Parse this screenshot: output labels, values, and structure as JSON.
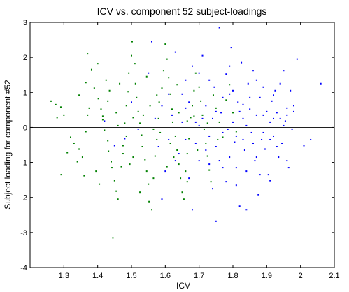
{
  "chart_data": {
    "type": "scatter",
    "title": "ICV vs. component 52 subject-loadings",
    "xlabel": "ICV",
    "ylabel": "Subject loading for component #52",
    "xlim": [
      1.2,
      2.1
    ],
    "ylim": [
      -4,
      3
    ],
    "xticks": [
      "1.3",
      "1.4",
      "1.5",
      "1.6",
      "1.7",
      "1.8",
      "1.9",
      "2",
      "2.1"
    ],
    "yticks": [
      "3",
      "2",
      "1",
      "0",
      "-1",
      "-2",
      "-3",
      "-4"
    ],
    "reference_line_y": 0,
    "box": true,
    "grid": false,
    "series": [
      {
        "color": "#008000",
        "points": [
          [
            1.262,
            0.75
          ],
          [
            1.276,
            0.65
          ],
          [
            1.291,
            0.58
          ],
          [
            1.3,
            0.35
          ],
          [
            1.28,
            0.28
          ],
          [
            1.32,
            -0.28
          ],
          [
            1.33,
            -0.45
          ],
          [
            1.345,
            -0.62
          ],
          [
            1.31,
            -0.72
          ],
          [
            1.34,
            -0.98
          ],
          [
            1.292,
            -1.35
          ],
          [
            1.36,
            -1.38
          ],
          [
            1.365,
            -0.12
          ],
          [
            1.37,
            0.35
          ],
          [
            1.375,
            0.55
          ],
          [
            1.365,
            1.28
          ],
          [
            1.37,
            2.1
          ],
          [
            1.382,
            1.65
          ],
          [
            1.39,
            1.12
          ],
          [
            1.4,
            1.82
          ],
          [
            1.402,
            0.82
          ],
          [
            1.41,
            0.52
          ],
          [
            1.415,
            0.22
          ],
          [
            1.42,
            -0.08
          ],
          [
            1.43,
            -0.38
          ],
          [
            1.432,
            -0.68
          ],
          [
            1.44,
            -0.98
          ],
          [
            1.442,
            -1.15
          ],
          [
            1.45,
            -1.52
          ],
          [
            1.455,
            -1.82
          ],
          [
            1.46,
            -2.05
          ],
          [
            1.47,
            -1.12
          ],
          [
            1.475,
            -0.52
          ],
          [
            1.48,
            0.12
          ],
          [
            1.485,
            0.62
          ],
          [
            1.49,
            1.02
          ],
          [
            1.492,
            1.55
          ],
          [
            1.5,
            2.05
          ],
          [
            1.502,
            2.45
          ],
          [
            1.51,
            1.82
          ],
          [
            1.512,
            1.25
          ],
          [
            1.515,
            0.85
          ],
          [
            1.52,
            0.45
          ],
          [
            1.525,
            0.12
          ],
          [
            1.53,
            -0.22
          ],
          [
            1.532,
            -0.55
          ],
          [
            1.54,
            -0.92
          ],
          [
            1.545,
            -1.25
          ],
          [
            1.55,
            -1.62
          ],
          [
            1.552,
            -2.12
          ],
          [
            1.56,
            -2.35
          ],
          [
            1.565,
            -1.45
          ],
          [
            1.57,
            -0.82
          ],
          [
            1.575,
            -0.35
          ],
          [
            1.58,
            0.25
          ],
          [
            1.582,
            0.72
          ],
          [
            1.59,
            1.12
          ],
          [
            1.595,
            1.62
          ],
          [
            1.6,
            2.38
          ],
          [
            1.605,
            1.95
          ],
          [
            1.61,
            1.42
          ],
          [
            1.615,
            0.95
          ],
          [
            1.62,
            0.52
          ],
          [
            1.622,
            0.15
          ],
          [
            1.63,
            -0.25
          ],
          [
            1.635,
            -0.65
          ],
          [
            1.64,
            -1.05
          ],
          [
            1.645,
            -1.45
          ],
          [
            1.65,
            -1.85
          ],
          [
            1.655,
            -2.05
          ],
          [
            1.66,
            -1.25
          ],
          [
            1.665,
            -0.75
          ],
          [
            1.67,
            -0.32
          ],
          [
            1.675,
            0.28
          ],
          [
            1.68,
            0.62
          ],
          [
            1.685,
            1.05
          ],
          [
            1.69,
            1.55
          ],
          [
            1.7,
            1.15
          ],
          [
            1.705,
            0.75
          ],
          [
            1.71,
            0.35
          ],
          [
            1.715,
            -0.05
          ],
          [
            1.72,
            -0.45
          ],
          [
            1.725,
            -0.82
          ],
          [
            1.73,
            -1.22
          ],
          [
            1.735,
            -1.55
          ],
          [
            1.742,
            0.92
          ],
          [
            1.75,
            0.55
          ],
          [
            1.76,
            0.15
          ],
          [
            1.77,
            -0.28
          ],
          [
            1.78,
            0.78
          ],
          [
            1.79,
            1.22
          ],
          [
            1.8,
            0.42
          ],
          [
            1.81,
            -0.12
          ],
          [
            1.445,
            -3.15
          ],
          [
            1.415,
            0.32
          ],
          [
            1.43,
            0.75
          ],
          [
            1.46,
            0.05
          ],
          [
            1.485,
            -0.25
          ],
          [
            1.505,
            -0.85
          ],
          [
            1.535,
            0.35
          ],
          [
            1.555,
            0.62
          ],
          [
            1.585,
            -0.15
          ],
          [
            1.615,
            -0.45
          ],
          [
            1.64,
            0.42
          ],
          [
            1.665,
            0.18
          ],
          [
            1.695,
            -0.65
          ],
          [
            1.725,
            0.12
          ],
          [
            1.755,
            -0.35
          ],
          [
            1.345,
            0.92
          ],
          [
            1.355,
            -0.85
          ],
          [
            1.405,
            -1.62
          ],
          [
            1.395,
            -1.25
          ],
          [
            1.425,
            1.35
          ],
          [
            1.435,
            1.05
          ],
          [
            1.465,
            1.25
          ],
          [
            1.495,
            -1.05
          ],
          [
            1.525,
            -1.85
          ],
          [
            1.545,
            1.45
          ],
          [
            1.575,
            0.92
          ],
          [
            1.605,
            -1.12
          ],
          [
            1.635,
            1.22
          ],
          [
            1.665,
            -1.55
          ],
          [
            1.455,
            0.42
          ],
          [
            1.475,
            -0.75
          ],
          [
            1.505,
            0.28
          ],
          [
            1.565,
            -0.05
          ],
          [
            1.625,
            -0.85
          ],
          [
            1.685,
            0.32
          ]
        ]
      },
      {
        "color": "#0000ff",
        "points": [
          [
            1.42,
            0.18
          ],
          [
            1.45,
            -0.52
          ],
          [
            1.48,
            -0.32
          ],
          [
            1.5,
            0.72
          ],
          [
            1.52,
            -0.05
          ],
          [
            1.55,
            1.55
          ],
          [
            1.56,
            2.45
          ],
          [
            1.58,
            -0.55
          ],
          [
            1.6,
            -1.25
          ],
          [
            1.62,
            0.35
          ],
          [
            1.63,
            2.15
          ],
          [
            1.65,
            0.95
          ],
          [
            1.66,
            -0.35
          ],
          [
            1.67,
            -1.45
          ],
          [
            1.68,
            1.75
          ],
          [
            1.69,
            0.15
          ],
          [
            1.7,
            -0.95
          ],
          [
            1.71,
            2.05
          ],
          [
            1.72,
            0.62
          ],
          [
            1.73,
            -0.25
          ],
          [
            1.74,
            -1.75
          ],
          [
            1.745,
            1.15
          ],
          [
            1.75,
            -0.55
          ],
          [
            1.76,
            2.85
          ],
          [
            1.765,
            0.42
          ],
          [
            1.77,
            -1.15
          ],
          [
            1.78,
            1.52
          ],
          [
            1.785,
            -0.05
          ],
          [
            1.79,
            -0.85
          ],
          [
            1.795,
            2.28
          ],
          [
            1.8,
            1.05
          ],
          [
            1.805,
            -0.42
          ],
          [
            1.81,
            -1.65
          ],
          [
            1.815,
            0.72
          ],
          [
            1.82,
            -2.25
          ],
          [
            1.825,
            1.85
          ],
          [
            1.83,
            0.25
          ],
          [
            1.835,
            -0.65
          ],
          [
            1.84,
            -1.25
          ],
          [
            1.845,
            1.25
          ],
          [
            1.85,
            0.52
          ],
          [
            1.855,
            -0.15
          ],
          [
            1.86,
            1.62
          ],
          [
            1.865,
            -0.95
          ],
          [
            1.87,
            0.35
          ],
          [
            1.875,
            -1.92
          ],
          [
            1.88,
            0.85
          ],
          [
            1.885,
            -0.35
          ],
          [
            1.89,
            1.15
          ],
          [
            1.895,
            -0.62
          ],
          [
            1.9,
            0.45
          ],
          [
            1.905,
            -1.35
          ],
          [
            1.91,
            0.15
          ],
          [
            1.915,
            0.75
          ],
          [
            1.92,
            -0.25
          ],
          [
            1.925,
            1.05
          ],
          [
            1.93,
            0.42
          ],
          [
            1.935,
            -0.85
          ],
          [
            1.94,
            1.25
          ],
          [
            1.945,
            -0.45
          ],
          [
            1.95,
            1.62
          ],
          [
            1.955,
            0.18
          ],
          [
            1.96,
            0.55
          ],
          [
            1.965,
            -1.15
          ],
          [
            1.97,
            1.05
          ],
          [
            1.975,
            -0.05
          ],
          [
            1.98,
            0.62
          ],
          [
            1.99,
            1.95
          ],
          [
            2.01,
            -0.52
          ],
          [
            2.03,
            -0.35
          ],
          [
            2.06,
            1.25
          ],
          [
            1.59,
            -2.05
          ],
          [
            1.61,
            0.95
          ],
          [
            1.64,
            -0.75
          ],
          [
            1.66,
            0.55
          ],
          [
            1.68,
            -2.35
          ],
          [
            1.7,
            0.05
          ],
          [
            1.72,
            -0.65
          ],
          [
            1.73,
            1.35
          ],
          [
            1.75,
            -2.68
          ],
          [
            1.77,
            0.85
          ],
          [
            1.78,
            -1.55
          ],
          [
            1.79,
            1.75
          ],
          [
            1.81,
            -0.25
          ],
          [
            1.83,
            0.65
          ],
          [
            1.84,
            -2.35
          ],
          [
            1.86,
            -0.45
          ],
          [
            1.87,
            1.35
          ],
          [
            1.89,
            -0.15
          ],
          [
            1.91,
            -1.52
          ],
          [
            1.92,
            0.92
          ],
          [
            1.94,
            0.25
          ],
          [
            1.96,
            -0.95
          ],
          [
            1.98,
            0.45
          ],
          [
            1.57,
            0.25
          ],
          [
            1.59,
            0.62
          ],
          [
            1.61,
            -0.35
          ],
          [
            1.63,
            -0.95
          ],
          [
            1.65,
            0.15
          ],
          [
            1.67,
            0.72
          ],
          [
            1.69,
            -0.45
          ],
          [
            1.71,
            0.25
          ],
          [
            1.73,
            -1.05
          ],
          [
            1.75,
            0.45
          ],
          [
            1.77,
            -0.15
          ],
          [
            1.79,
            0.95
          ],
          [
            1.81,
            -1.15
          ],
          [
            1.83,
            -0.35
          ],
          [
            1.85,
            0.85
          ],
          [
            1.87,
            -0.85
          ],
          [
            1.89,
            0.35
          ],
          [
            1.91,
            -0.35
          ],
          [
            1.93,
            -0.55
          ],
          [
            1.95,
            0.05
          ],
          [
            1.66,
            1.35
          ],
          [
            1.7,
            1.55
          ],
          [
            1.74,
            0.25
          ],
          [
            1.76,
            -0.95
          ],
          [
            1.8,
            0.15
          ],
          [
            1.82,
            0.45
          ],
          [
            1.84,
            0.05
          ],
          [
            1.88,
            -1.35
          ],
          [
            1.92,
            0.25
          ],
          [
            1.96,
            0.35
          ]
        ]
      }
    ]
  }
}
